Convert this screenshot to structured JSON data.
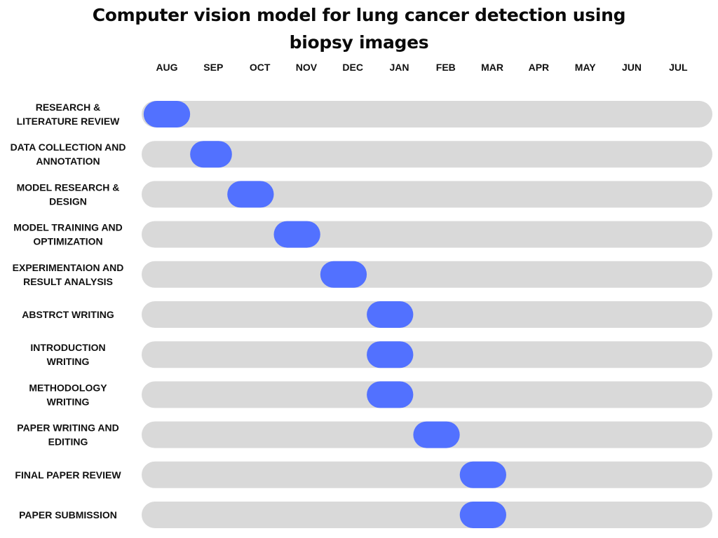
{
  "chart_data": {
    "type": "gantt",
    "title_lines": [
      "Computer vision model for lung cancer detection using",
      "biopsy images"
    ],
    "months": [
      "AUG",
      "SEP",
      "OCT",
      "NOV",
      "DEC",
      "JAN",
      "FEB",
      "MAR",
      "APR",
      "MAY",
      "JUN",
      "JUL"
    ],
    "tasks": [
      {
        "label_lines": [
          "RESEARCH &",
          "LITERATURE REVIEW"
        ],
        "start": 0.0,
        "end": 1.0
      },
      {
        "label_lines": [
          "DATA COLLECTION AND",
          "ANNOTATION"
        ],
        "start": 1.0,
        "end": 1.9
      },
      {
        "label_lines": [
          "MODEL RESEARCH &",
          "DESIGN"
        ],
        "start": 1.8,
        "end": 2.8
      },
      {
        "label_lines": [
          "MODEL TRAINING AND",
          "OPTIMIZATION"
        ],
        "start": 2.8,
        "end": 3.8
      },
      {
        "label_lines": [
          "EXPERIMENTAION AND",
          "RESULT ANALYSIS"
        ],
        "start": 3.8,
        "end": 4.8
      },
      {
        "label_lines": [
          "ABSTRCT WRITING"
        ],
        "start": 4.8,
        "end": 5.8
      },
      {
        "label_lines": [
          "INTRODUCTION",
          "WRITING"
        ],
        "start": 4.8,
        "end": 5.8
      },
      {
        "label_lines": [
          "METHODOLOGY",
          "WRITING"
        ],
        "start": 4.8,
        "end": 5.8
      },
      {
        "label_lines": [
          "PAPER WRITING AND",
          "EDITING"
        ],
        "start": 5.8,
        "end": 6.8
      },
      {
        "label_lines": [
          "FINAL PAPER REVIEW"
        ],
        "start": 6.8,
        "end": 7.8
      },
      {
        "label_lines": [
          "PAPER SUBMISSION"
        ],
        "start": 6.8,
        "end": 7.8
      }
    ],
    "colors": {
      "track": "#d9d9d9",
      "bar": "#5271ff",
      "text": "#111111"
    }
  }
}
